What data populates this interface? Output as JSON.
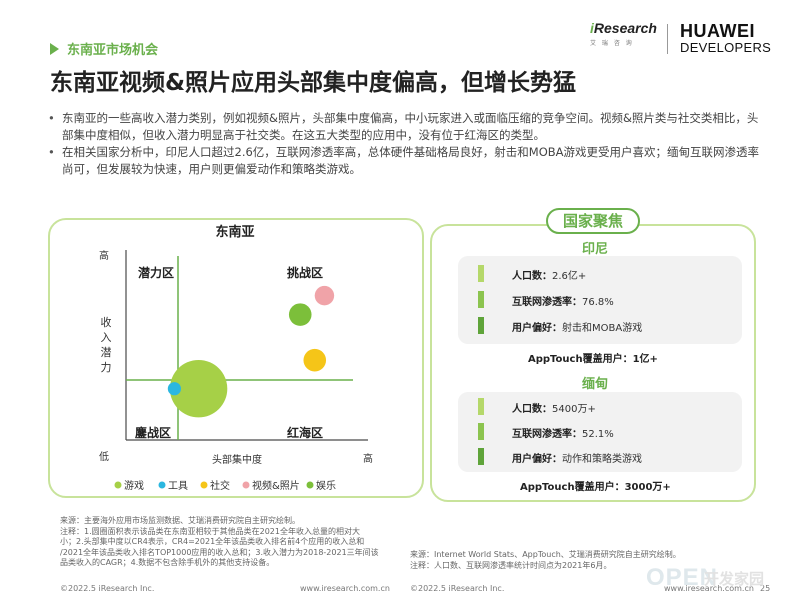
{
  "header": {
    "section_tag": "东南亚市场机会",
    "title": "东南亚视频&照片应用头部集中度偏高，但增长势猛",
    "logo_iresearch": "iResearch",
    "logo_iresearch_sub": "艾 瑞 咨 询",
    "logo_huawei_line1": "HUAWEI",
    "logo_huawei_line2": "DEVELOPERS"
  },
  "bullets": [
    "东南亚的一些高收入潜力类别，例如视频&照片，头部集中度偏高，中小玩家进入或面临压缩的竞争空间。视频&照片类与社交类相比，头部集中度相似，但收入潜力明显高于社交类。在这五大类型的应用中，没有位于红海区的类型。",
    "在相关国家分析中，印尼人口超过2.6亿，互联网渗透率高，总体硬件基础格局良好，射击和MOBA游戏更受用户喜欢；缅甸互联网渗透率尚可，但发展较为快速，用户则更偏爱动作和策略类游戏。"
  ],
  "chart_data": {
    "type": "scatter",
    "title": "东南亚",
    "xlabel": "头部集中度",
    "ylabel": "收入潜力",
    "x_low": "低",
    "x_high": "高",
    "y_high": "高",
    "quadrants": {
      "top_left": "潜力区",
      "top_right": "挑战区",
      "bottom_left": "鏖战区",
      "bottom_right": "红海区"
    },
    "series": [
      {
        "name": "游戏",
        "color": "#a6d047",
        "x": 0.3,
        "y": 0.27,
        "size": 0.95
      },
      {
        "name": "工具",
        "color": "#2bb7e0",
        "x": 0.2,
        "y": 0.27,
        "size": 0.1
      },
      {
        "name": "社交",
        "color": "#f5c518",
        "x": 0.78,
        "y": 0.42,
        "size": 0.28
      },
      {
        "name": "视频&照片",
        "color": "#f0a3a8",
        "x": 0.82,
        "y": 0.76,
        "size": 0.22
      },
      {
        "name": "娱乐",
        "color": "#7cbf3a",
        "x": 0.72,
        "y": 0.66,
        "size": 0.28
      }
    ],
    "legend_position": "bottom",
    "grid": false
  },
  "focus": {
    "heading": "国家聚焦",
    "countries": [
      {
        "name": "印尼",
        "stats": [
          {
            "label": "人口数：",
            "value": "2.6亿+"
          },
          {
            "label": "互联网渗透率：",
            "value": "76.8%"
          },
          {
            "label": "用户偏好：",
            "value": "射击和MOBA游戏"
          }
        ],
        "apptouch_label": "AppTouch覆盖用户：",
        "apptouch_value": "1亿+"
      },
      {
        "name": "缅甸",
        "stats": [
          {
            "label": "人口数：",
            "value": "5400万+"
          },
          {
            "label": "互联网渗透率：",
            "value": "52.1%"
          },
          {
            "label": "用户偏好：",
            "value": "动作和策略类游戏"
          }
        ],
        "apptouch_label": "AppTouch覆盖用户：",
        "apptouch_value": "3000万+"
      }
    ],
    "bar_colors": [
      "#b5d86a",
      "#8cc44f",
      "#5fa43a"
    ]
  },
  "footer": {
    "left_notes": [
      "来源：主要海外应用市场监测数据、艾瑞消费研究院自主研究绘制。",
      "注释：1.圆圈面积表示该品类在东南亚相较于其他品类在2021全年收入总量的相对大",
      "小；2.头部集中度以CR4表示，CR4=2021全年该品类收入排名前4个应用的收入总和",
      "/2021全年该品类收入排名TOP1000应用的收入总和；3.收入潜力为2018-2021三年间该",
      "品类收入的CAGR；4.数据不包含除手机外的其他支持设备。"
    ],
    "right_notes": [
      "来源：Internet World Stats、AppTouch、艾瑞消费研究院自主研究绘制。",
      "注释：人口数、互联网渗透率统计时间点为2021年6月。"
    ],
    "copyright": "©2022.5 iResearch Inc.",
    "website": "www.iresearch.com.cn",
    "page_number": "25",
    "watermark": "OPEN",
    "watermark_sub": "开发家园"
  }
}
